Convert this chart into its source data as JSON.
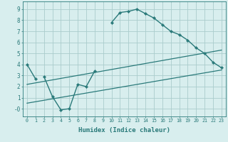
{
  "xlabel": "Humidex (Indice chaleur)",
  "bg_color": "#d8eeee",
  "line_color": "#2a7a7a",
  "grid_color": "#aacccc",
  "xlim": [
    -0.5,
    23.5
  ],
  "ylim": [
    -0.7,
    9.7
  ],
  "xticks": [
    0,
    1,
    2,
    3,
    4,
    5,
    6,
    7,
    8,
    9,
    10,
    11,
    12,
    13,
    14,
    15,
    16,
    17,
    18,
    19,
    20,
    21,
    22,
    23
  ],
  "yticks": [
    0,
    1,
    2,
    3,
    4,
    5,
    6,
    7,
    8,
    9
  ],
  "ytick_labels": [
    "-0",
    "1",
    "2",
    "3",
    "4",
    "5",
    "6",
    "7",
    "8",
    "9"
  ],
  "line1_x": [
    0,
    1,
    2,
    3,
    4,
    5,
    6,
    7,
    8,
    10,
    11,
    12,
    13,
    14,
    15,
    16,
    17,
    18,
    19,
    20,
    21,
    22,
    23
  ],
  "line1_y": [
    4.0,
    2.7,
    2.9,
    1.1,
    -0.1,
    0.0,
    2.2,
    2.0,
    3.4,
    7.8,
    8.7,
    8.8,
    9.0,
    8.6,
    8.2,
    7.6,
    7.0,
    6.7,
    6.2,
    5.5,
    5.0,
    4.2,
    3.7
  ],
  "line1_breaks": [
    1,
    8
  ],
  "line2_x": [
    0,
    23
  ],
  "line2_y": [
    2.2,
    5.3
  ],
  "line3_x": [
    0,
    23
  ],
  "line3_y": [
    0.5,
    3.5
  ]
}
